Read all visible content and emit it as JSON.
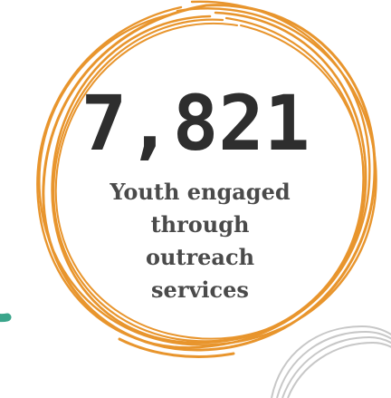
{
  "stat": {
    "number": "7,821",
    "caption_lines": [
      "Youth engaged",
      "through",
      "outreach",
      "services"
    ]
  },
  "colors": {
    "scribble": "#e8952d",
    "accent_gray": "#c7c7c7",
    "accent_green": "#3aa58b",
    "text_dark": "#2e2e2e",
    "text_body": "#4a4a4a"
  }
}
